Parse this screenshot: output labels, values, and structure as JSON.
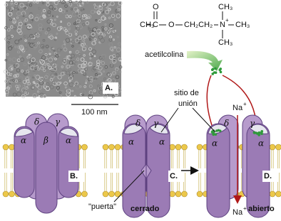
{
  "panel_a": {
    "label": "A.",
    "scale_bar": "100 nm"
  },
  "molecule": {
    "name": "acetilcolina",
    "carbonyl_o": "O",
    "chain": [
      "CH₃",
      "C",
      "O",
      "CH₂CH₂",
      "N",
      "CH₃"
    ],
    "charge": "+",
    "methyl_top": "CH₃",
    "methyl_bottom": "CH₃"
  },
  "binding_site": [
    "sitio de",
    "unión"
  ],
  "panel_b": {
    "label": "B.",
    "subunits": [
      "δ",
      "γ",
      "α",
      "β",
      "α"
    ]
  },
  "panel_c": {
    "label": "C.",
    "subunits": [
      "δ",
      "γ",
      "α",
      "α"
    ],
    "gate": "\"puerta\"",
    "state": "cerrado"
  },
  "panel_d": {
    "label": "D.",
    "subunits": [
      "δ",
      "γ",
      "α",
      "α"
    ],
    "state": "abierto",
    "ion_top": "Na",
    "ion_top_charge": "+",
    "ion_bottom": "Na",
    "ion_bottom_charge": "+"
  }
}
